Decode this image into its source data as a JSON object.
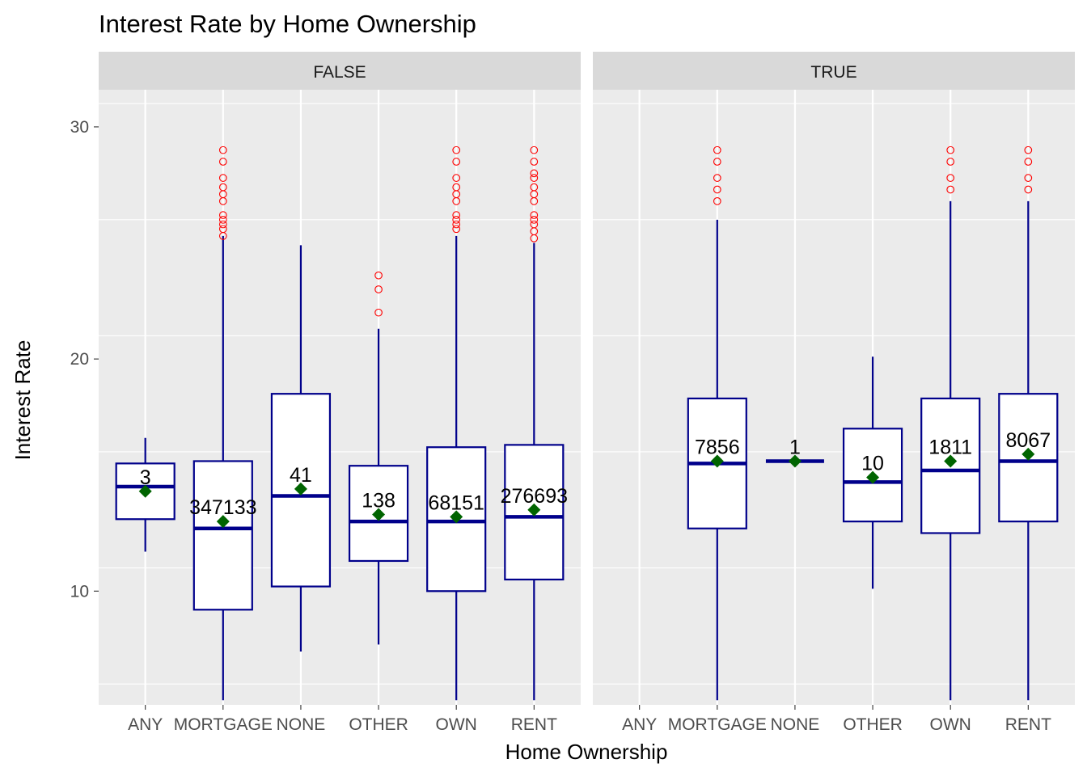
{
  "chart_data": {
    "type": "box",
    "title": "Interest Rate by Home Ownership",
    "xlabel": "Home Ownership",
    "ylabel": "Interest Rate",
    "categories": [
      "ANY",
      "MORTGAGE",
      "NONE",
      "OTHER",
      "OWN",
      "RENT"
    ],
    "ylim": [
      5.1,
      31.6
    ],
    "yticks": [
      10,
      20,
      30
    ],
    "grid": true,
    "legend": "none",
    "colors": {
      "panel_bg": "#ebebeb",
      "grid": "#ffffff",
      "strip_bg": "#d9d9d9",
      "box_line": "#00008b",
      "box_fill": "#ffffff",
      "mean_marker": "#006400",
      "outlier": "#ff0000"
    },
    "facets": [
      {
        "label": "FALSE",
        "boxes": [
          {
            "category": "ANY",
            "n": "3",
            "lower": 11.7,
            "q1": 13.1,
            "median": 14.5,
            "q3": 15.5,
            "upper": 16.6,
            "mean": 14.3,
            "outliers": []
          },
          {
            "category": "MORTGAGE",
            "n": "347133",
            "lower": 5.3,
            "q1": 9.2,
            "median": 12.7,
            "q3": 15.6,
            "upper": 25.3,
            "mean": 13.0,
            "outliers": [
              25.3,
              25.6,
              25.8,
              26.0,
              26.2,
              26.8,
              27.1,
              27.4,
              27.8,
              28.5,
              29.0
            ]
          },
          {
            "category": "NONE",
            "n": "41",
            "lower": 7.4,
            "q1": 10.2,
            "median": 14.1,
            "q3": 18.5,
            "upper": 24.9,
            "mean": 14.4,
            "outliers": []
          },
          {
            "category": "OTHER",
            "n": "138",
            "lower": 7.7,
            "q1": 11.3,
            "median": 13.0,
            "q3": 15.4,
            "upper": 21.3,
            "mean": 13.3,
            "outliers": [
              22.0,
              23.0,
              23.6
            ]
          },
          {
            "category": "OWN",
            "n": "68151",
            "lower": 5.3,
            "q1": 10.0,
            "median": 13.0,
            "q3": 16.2,
            "upper": 25.3,
            "mean": 13.2,
            "outliers": [
              25.6,
              25.8,
              26.0,
              26.2,
              26.8,
              27.1,
              27.4,
              27.8,
              28.5,
              29.0
            ]
          },
          {
            "category": "RENT",
            "n": "276693",
            "lower": 5.3,
            "q1": 10.5,
            "median": 13.2,
            "q3": 16.3,
            "upper": 25.0,
            "mean": 13.5,
            "outliers": [
              25.2,
              25.5,
              25.8,
              26.0,
              26.2,
              26.8,
              27.1,
              27.4,
              27.8,
              28.0,
              28.5,
              29.0
            ]
          }
        ]
      },
      {
        "label": "TRUE",
        "boxes": [
          {
            "category": "MORTGAGE",
            "n": "7856",
            "lower": 5.3,
            "q1": 12.7,
            "median": 15.5,
            "q3": 18.3,
            "upper": 26.0,
            "mean": 15.6,
            "outliers": [
              26.8,
              27.3,
              27.8,
              28.5,
              29.0
            ]
          },
          {
            "category": "NONE",
            "n": "1",
            "lower": 15.6,
            "q1": 15.6,
            "median": 15.6,
            "q3": 15.6,
            "upper": 15.6,
            "mean": 15.6,
            "outliers": []
          },
          {
            "category": "OTHER",
            "n": "10",
            "lower": 10.1,
            "q1": 13.0,
            "median": 14.7,
            "q3": 17.0,
            "upper": 20.1,
            "mean": 14.9,
            "outliers": []
          },
          {
            "category": "OWN",
            "n": "1811",
            "lower": 5.3,
            "q1": 12.5,
            "median": 15.2,
            "q3": 18.3,
            "upper": 26.8,
            "mean": 15.6,
            "outliers": [
              27.3,
              27.8,
              28.5,
              29.0
            ]
          },
          {
            "category": "RENT",
            "n": "8067",
            "lower": 5.3,
            "q1": 13.0,
            "median": 15.6,
            "q3": 18.5,
            "upper": 26.8,
            "mean": 15.9,
            "outliers": [
              27.3,
              27.8,
              28.5,
              29.0
            ]
          }
        ]
      }
    ]
  }
}
